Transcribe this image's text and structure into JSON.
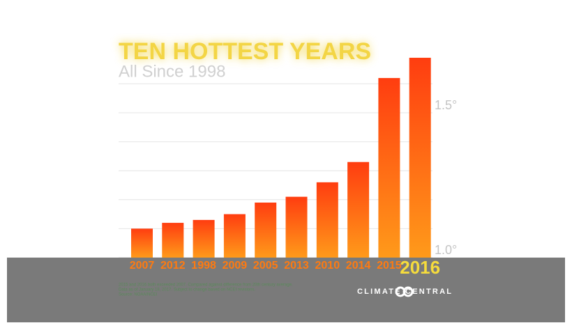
{
  "chart_data": {
    "type": "bar",
    "title": "TEN HOTTEST YEARS",
    "subtitle": "All Since 1998",
    "categories": [
      "2007",
      "2012",
      "1998",
      "2009",
      "2005",
      "2013",
      "2010",
      "2014",
      "2015",
      "2016"
    ],
    "values": [
      1.1,
      1.12,
      1.13,
      1.15,
      1.19,
      1.21,
      1.26,
      1.33,
      1.62,
      1.69
    ],
    "ylim": [
      1.0,
      1.75
    ],
    "yticks": [
      {
        "value": 1.0,
        "label": "1.0°"
      },
      {
        "value": 1.5,
        "label": "1.5°"
      }
    ],
    "minor_gridlines": [
      1.1,
      1.2,
      1.3,
      1.4,
      1.6
    ],
    "grid": true,
    "notes": [
      "2015 and 2016 both exceeded 2007. Compared against difference from 20th century average.",
      "Data as of January 18, 2017. Subject to change based on NCEI revisions.",
      "Source: NOAA/NCEI"
    ],
    "logo": "CLIMATE CENTRAL"
  }
}
